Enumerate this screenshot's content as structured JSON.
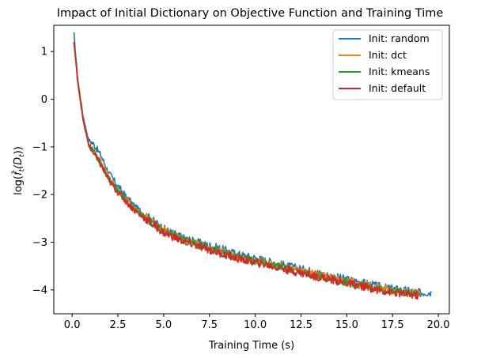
{
  "chart_data": {
    "type": "line",
    "title": "Impact of Initial Dictionary on Objective Function and Training Time",
    "xlabel": "Training Time (s)",
    "ylabel_main": "log(",
    "ylabel_f": "f̂",
    "ylabel_sub_t": "t",
    "ylabel_D": "(D",
    "ylabel_sub_t2": "t",
    "ylabel_close": "))",
    "xlim": [
      -1.0,
      20.6
    ],
    "ylim": [
      -4.5,
      1.55
    ],
    "xticks": [
      0.0,
      2.5,
      5.0,
      7.5,
      10.0,
      12.5,
      15.0,
      17.5,
      20.0
    ],
    "xtick_labels": [
      "0.0",
      "2.5",
      "5.0",
      "7.5",
      "10.0",
      "12.5",
      "15.0",
      "17.5",
      "20.0"
    ],
    "yticks": [
      1,
      0,
      -1,
      -2,
      -3,
      -4
    ],
    "ytick_labels": [
      "1",
      "0",
      "−1",
      "−2",
      "−3",
      "−4"
    ],
    "legend_position": "top-right",
    "series": [
      {
        "name": "Init: random",
        "color": "#1f77b4",
        "x_end": 19.6,
        "offset": 0.06,
        "points": [
          [
            0.1,
            1.38
          ],
          [
            0.3,
            0.45
          ],
          [
            0.6,
            -0.35
          ],
          [
            0.9,
            -0.85
          ],
          [
            1.2,
            -0.95
          ],
          [
            1.6,
            -1.2
          ],
          [
            2.0,
            -1.55
          ],
          [
            2.5,
            -1.82
          ],
          [
            3.0,
            -2.07
          ],
          [
            3.5,
            -2.28
          ],
          [
            4.0,
            -2.42
          ],
          [
            5.0,
            -2.72
          ],
          [
            6.0,
            -2.9
          ],
          [
            7.0,
            -3.02
          ],
          [
            8.0,
            -3.12
          ],
          [
            9.0,
            -3.25
          ],
          [
            10.0,
            -3.33
          ],
          [
            11.0,
            -3.43
          ],
          [
            12.0,
            -3.52
          ],
          [
            13.0,
            -3.6
          ],
          [
            14.0,
            -3.7
          ],
          [
            15.0,
            -3.78
          ],
          [
            16.0,
            -3.86
          ],
          [
            17.0,
            -3.95
          ],
          [
            18.0,
            -4.0
          ],
          [
            19.0,
            -4.06
          ],
          [
            19.6,
            -4.05
          ]
        ]
      },
      {
        "name": "Init: dct",
        "color": "#ff7f0e",
        "x_end": 19.0,
        "offset": 0.0,
        "points": [
          [
            0.1,
            1.2
          ],
          [
            0.3,
            0.4
          ],
          [
            0.6,
            -0.4
          ],
          [
            0.9,
            -0.95
          ],
          [
            1.2,
            -1.1
          ],
          [
            1.6,
            -1.35
          ],
          [
            2.0,
            -1.65
          ],
          [
            2.5,
            -1.9
          ],
          [
            3.0,
            -2.13
          ],
          [
            3.5,
            -2.33
          ],
          [
            4.0,
            -2.47
          ],
          [
            5.0,
            -2.75
          ],
          [
            6.0,
            -2.93
          ],
          [
            7.0,
            -3.05
          ],
          [
            8.0,
            -3.18
          ],
          [
            9.0,
            -3.3
          ],
          [
            10.0,
            -3.38
          ],
          [
            11.0,
            -3.47
          ],
          [
            12.0,
            -3.56
          ],
          [
            13.0,
            -3.65
          ],
          [
            14.0,
            -3.73
          ],
          [
            15.0,
            -3.82
          ],
          [
            16.0,
            -3.9
          ],
          [
            17.0,
            -3.98
          ],
          [
            18.0,
            -4.05
          ],
          [
            19.0,
            -4.08
          ]
        ]
      },
      {
        "name": "Init: kmeans",
        "color": "#2ca02c",
        "x_end": 19.0,
        "offset": -0.01,
        "points": [
          [
            0.1,
            1.22
          ],
          [
            0.3,
            0.42
          ],
          [
            0.6,
            -0.42
          ],
          [
            0.9,
            -0.95
          ],
          [
            1.2,
            -1.12
          ],
          [
            1.6,
            -1.37
          ],
          [
            2.0,
            -1.67
          ],
          [
            2.5,
            -1.92
          ],
          [
            3.0,
            -2.15
          ],
          [
            3.5,
            -2.35
          ],
          [
            4.0,
            -2.49
          ],
          [
            5.0,
            -2.77
          ],
          [
            6.0,
            -2.95
          ],
          [
            7.0,
            -3.07
          ],
          [
            8.0,
            -3.2
          ],
          [
            9.0,
            -3.32
          ],
          [
            10.0,
            -3.4
          ],
          [
            11.0,
            -3.49
          ],
          [
            12.0,
            -3.58
          ],
          [
            13.0,
            -3.67
          ],
          [
            14.0,
            -3.75
          ],
          [
            15.0,
            -3.84
          ],
          [
            16.0,
            -3.92
          ],
          [
            17.0,
            -4.0
          ],
          [
            18.0,
            -4.06
          ],
          [
            19.0,
            -4.1
          ]
        ]
      },
      {
        "name": "Init: default",
        "color": "#d62728",
        "x_end": 18.9,
        "offset": -0.03,
        "points": [
          [
            0.1,
            1.2
          ],
          [
            0.3,
            0.38
          ],
          [
            0.6,
            -0.45
          ],
          [
            0.9,
            -0.97
          ],
          [
            1.2,
            -1.14
          ],
          [
            1.6,
            -1.4
          ],
          [
            2.0,
            -1.7
          ],
          [
            2.5,
            -1.95
          ],
          [
            3.0,
            -2.17
          ],
          [
            3.5,
            -2.37
          ],
          [
            4.0,
            -2.51
          ],
          [
            5.0,
            -2.8
          ],
          [
            6.0,
            -2.97
          ],
          [
            7.0,
            -3.1
          ],
          [
            8.0,
            -3.22
          ],
          [
            9.0,
            -3.34
          ],
          [
            10.0,
            -3.42
          ],
          [
            11.0,
            -3.51
          ],
          [
            12.0,
            -3.6
          ],
          [
            13.0,
            -3.69
          ],
          [
            14.0,
            -3.77
          ],
          [
            15.0,
            -3.86
          ],
          [
            16.0,
            -3.94
          ],
          [
            17.0,
            -4.02
          ],
          [
            18.0,
            -4.08
          ],
          [
            18.9,
            -4.12
          ]
        ]
      }
    ]
  }
}
